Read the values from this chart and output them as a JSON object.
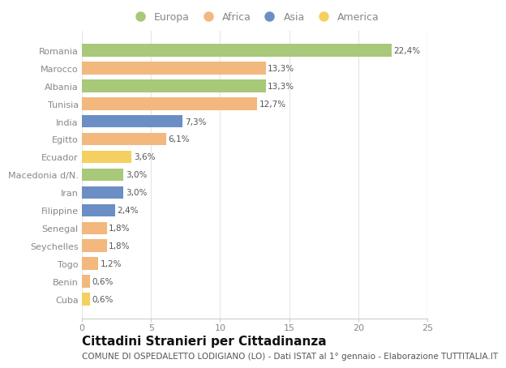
{
  "categories": [
    "Romania",
    "Marocco",
    "Albania",
    "Tunisia",
    "India",
    "Egitto",
    "Ecuador",
    "Macedonia d/N.",
    "Iran",
    "Filippine",
    "Senegal",
    "Seychelles",
    "Togo",
    "Benin",
    "Cuba"
  ],
  "values": [
    22.4,
    13.3,
    13.3,
    12.7,
    7.3,
    6.1,
    3.6,
    3.0,
    3.0,
    2.4,
    1.8,
    1.8,
    1.2,
    0.6,
    0.6
  ],
  "labels": [
    "22,4%",
    "13,3%",
    "13,3%",
    "12,7%",
    "7,3%",
    "6,1%",
    "3,6%",
    "3,0%",
    "3,0%",
    "2,4%",
    "1,8%",
    "1,8%",
    "1,2%",
    "0,6%",
    "0,6%"
  ],
  "continent": [
    "Europa",
    "Africa",
    "Europa",
    "Africa",
    "Asia",
    "Africa",
    "America",
    "Europa",
    "Asia",
    "Asia",
    "Africa",
    "Africa",
    "Africa",
    "Africa",
    "America"
  ],
  "colors": {
    "Europa": "#a8c87a",
    "Africa": "#f2b87e",
    "Asia": "#6b8fc4",
    "America": "#f5d060"
  },
  "legend_order": [
    "Europa",
    "Africa",
    "Asia",
    "America"
  ],
  "background_color": "#ffffff",
  "plot_bg_color": "#ffffff",
  "xlim": [
    0,
    25
  ],
  "xticks": [
    0,
    5,
    10,
    15,
    20,
    25
  ],
  "title": "Cittadini Stranieri per Cittadinanza",
  "subtitle": "COMUNE DI OSPEDALETTO LODIGIANO (LO) - Dati ISTAT al 1° gennaio - Elaborazione TUTTITALIA.IT",
  "title_fontsize": 11,
  "subtitle_fontsize": 7.5,
  "label_fontsize": 7.5,
  "tick_fontsize": 8,
  "legend_fontsize": 9,
  "bar_height": 0.7,
  "grid_color": "#e8e8e8",
  "label_color": "#555555",
  "tick_color": "#888888",
  "title_color": "#111111",
  "subtitle_color": "#555555"
}
